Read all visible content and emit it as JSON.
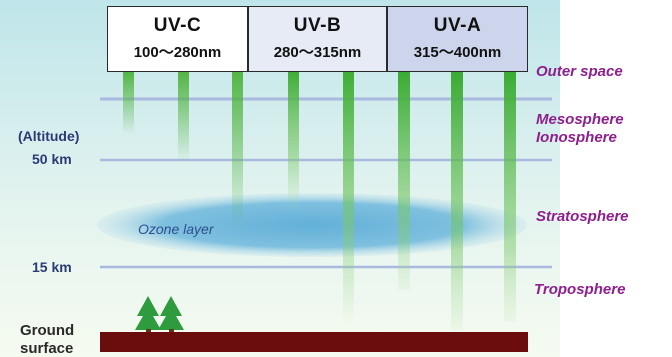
{
  "bands": [
    {
      "name": "UV-C",
      "range": "100～280nm"
    },
    {
      "name": "UV-B",
      "range": "280～315nm"
    },
    {
      "name": "UV-A",
      "range": "315～400nm"
    }
  ],
  "layers": {
    "outer_space": "Outer space",
    "mesosphere": "Mesosphere",
    "ionosphere": "Ionosphere",
    "stratosphere": "Stratosphere",
    "troposphere": "Troposphere"
  },
  "altitude": {
    "header": "(Altitude)",
    "km50": "50 km",
    "km15": "15 km"
  },
  "ozone_label": "Ozone layer",
  "ground": {
    "line1": "Ground",
    "line2": "surface"
  },
  "colors": {
    "sky_top": "#bfe5ea",
    "sky_bottom": "#f6fbf0",
    "beam": "#5cbd4a",
    "ozone": "#6fb6d8",
    "ground": "#6b0d0d",
    "purple_text": "#8e1f8e",
    "blue_text": "#2a3a75"
  }
}
